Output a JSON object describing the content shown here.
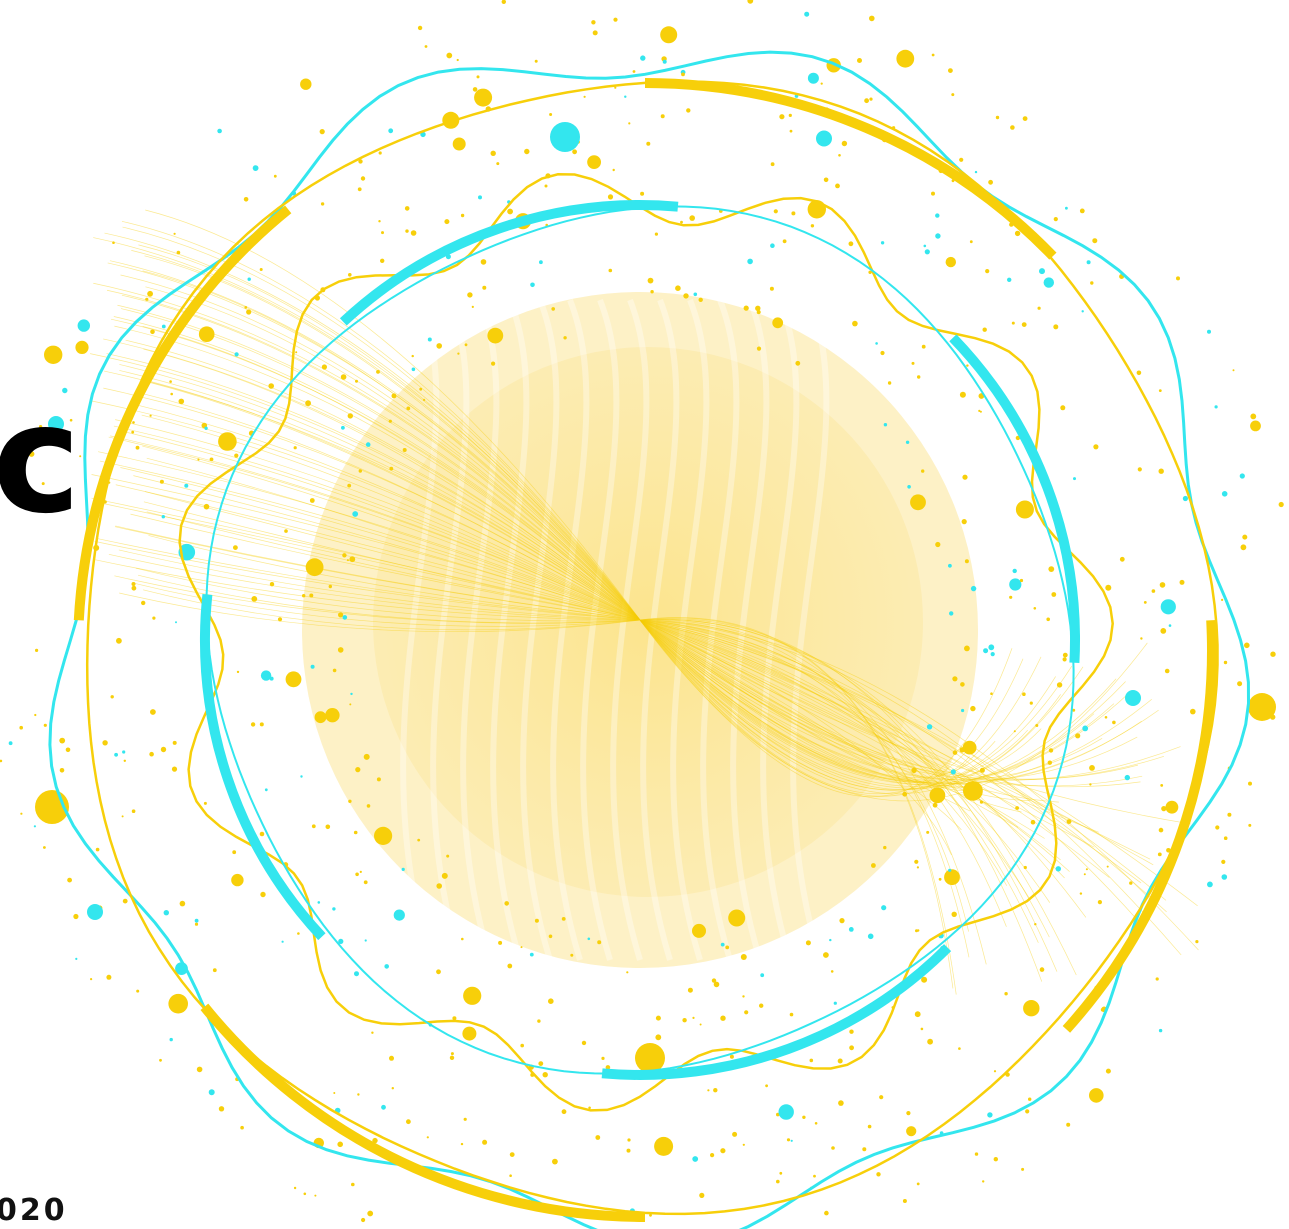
{
  "heading_fragment": "c",
  "date_fragment": "020"
}
